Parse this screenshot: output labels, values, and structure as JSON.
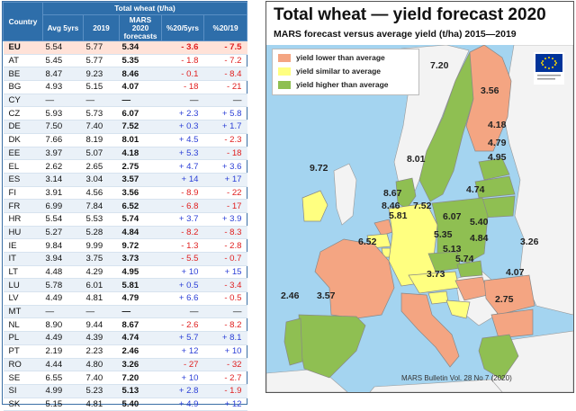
{
  "table": {
    "title": "Total wheat (t/ha)",
    "headers": {
      "country": "Country",
      "avg": "Avg 5yrs",
      "y2019": "2019",
      "forecast": "MARS 2020 forecasts",
      "d5": "%20/5yrs",
      "d19": "%20/19"
    },
    "rows": [
      {
        "country": "EU",
        "avg": "5.54",
        "y2019": "5.77",
        "forecast": "5.34",
        "d5": "- 3.6",
        "d19": "- 7.5"
      },
      {
        "country": "AT",
        "avg": "5.45",
        "y2019": "5.77",
        "forecast": "5.35",
        "d5": "- 1.8",
        "d19": "- 7.2"
      },
      {
        "country": "BE",
        "avg": "8.47",
        "y2019": "9.23",
        "forecast": "8.46",
        "d5": "- 0.1",
        "d19": "- 8.4"
      },
      {
        "country": "BG",
        "avg": "4.93",
        "y2019": "5.15",
        "forecast": "4.07",
        "d5": "- 18",
        "d19": "- 21"
      },
      {
        "country": "CY",
        "avg": "—",
        "y2019": "—",
        "forecast": "—",
        "d5": "—",
        "d19": "—"
      },
      {
        "country": "CZ",
        "avg": "5.93",
        "y2019": "5.73",
        "forecast": "6.07",
        "d5": "+ 2.3",
        "d19": "+ 5.8"
      },
      {
        "country": "DE",
        "avg": "7.50",
        "y2019": "7.40",
        "forecast": "7.52",
        "d5": "+ 0.3",
        "d19": "+ 1.7"
      },
      {
        "country": "DK",
        "avg": "7.66",
        "y2019": "8.19",
        "forecast": "8.01",
        "d5": "+ 4.5",
        "d19": "- 2.3"
      },
      {
        "country": "EE",
        "avg": "3.97",
        "y2019": "5.07",
        "forecast": "4.18",
        "d5": "+ 5.3",
        "d19": "- 18"
      },
      {
        "country": "EL",
        "avg": "2.62",
        "y2019": "2.65",
        "forecast": "2.75",
        "d5": "+ 4.7",
        "d19": "+ 3.6"
      },
      {
        "country": "ES",
        "avg": "3.14",
        "y2019": "3.04",
        "forecast": "3.57",
        "d5": "+ 14",
        "d19": "+ 17"
      },
      {
        "country": "FI",
        "avg": "3.91",
        "y2019": "4.56",
        "forecast": "3.56",
        "d5": "- 8.9",
        "d19": "- 22"
      },
      {
        "country": "FR",
        "avg": "6.99",
        "y2019": "7.84",
        "forecast": "6.52",
        "d5": "- 6.8",
        "d19": "- 17"
      },
      {
        "country": "HR",
        "avg": "5.54",
        "y2019": "5.53",
        "forecast": "5.74",
        "d5": "+ 3.7",
        "d19": "+ 3.9"
      },
      {
        "country": "HU",
        "avg": "5.27",
        "y2019": "5.28",
        "forecast": "4.84",
        "d5": "- 8.2",
        "d19": "- 8.3"
      },
      {
        "country": "IE",
        "avg": "9.84",
        "y2019": "9.99",
        "forecast": "9.72",
        "d5": "- 1.3",
        "d19": "- 2.8"
      },
      {
        "country": "IT",
        "avg": "3.94",
        "y2019": "3.75",
        "forecast": "3.73",
        "d5": "- 5.5",
        "d19": "- 0.7"
      },
      {
        "country": "LT",
        "avg": "4.48",
        "y2019": "4.29",
        "forecast": "4.95",
        "d5": "+ 10",
        "d19": "+ 15"
      },
      {
        "country": "LU",
        "avg": "5.78",
        "y2019": "6.01",
        "forecast": "5.81",
        "d5": "+ 0.5",
        "d19": "- 3.4"
      },
      {
        "country": "LV",
        "avg": "4.49",
        "y2019": "4.81",
        "forecast": "4.79",
        "d5": "+ 6.6",
        "d19": "- 0.5"
      },
      {
        "country": "MT",
        "avg": "—",
        "y2019": "—",
        "forecast": "—",
        "d5": "—",
        "d19": "—"
      },
      {
        "country": "NL",
        "avg": "8.90",
        "y2019": "9.44",
        "forecast": "8.67",
        "d5": "- 2.6",
        "d19": "- 8.2"
      },
      {
        "country": "PL",
        "avg": "4.49",
        "y2019": "4.39",
        "forecast": "4.74",
        "d5": "+ 5.7",
        "d19": "+ 8.1"
      },
      {
        "country": "PT",
        "avg": "2.19",
        "y2019": "2.23",
        "forecast": "2.46",
        "d5": "+ 12",
        "d19": "+ 10"
      },
      {
        "country": "RO",
        "avg": "4.44",
        "y2019": "4.80",
        "forecast": "3.26",
        "d5": "- 27",
        "d19": "- 32"
      },
      {
        "country": "SE",
        "avg": "6.55",
        "y2019": "7.40",
        "forecast": "7.20",
        "d5": "+ 10",
        "d19": "- 2.7"
      },
      {
        "country": "SI",
        "avg": "4.99",
        "y2019": "5.23",
        "forecast": "5.13",
        "d5": "+ 2.8",
        "d19": "- 1.9"
      },
      {
        "country": "SK",
        "avg": "5.15",
        "y2019": "4.81",
        "forecast": "5.40",
        "d5": "+ 4.9",
        "d19": "+ 12"
      }
    ]
  },
  "map": {
    "title": "Total wheat — yield forecast 2020",
    "subtitle": "MARS forecast versus average yield (t/ha) 2015—2019",
    "legend": [
      {
        "label": "yield lower than average",
        "color": "#f4a582"
      },
      {
        "label": "yield similar to average",
        "color": "#ffff80"
      },
      {
        "label": "yield higher than average",
        "color": "#8fbf52"
      }
    ],
    "source": "MARS Bulletin Vol. 28 No 7 (2020)",
    "colors": {
      "sea": "#a4d4f0",
      "nonEU": "#f3f3f3",
      "border": "#888888",
      "flag": "#003399",
      "star": "#ffdd00"
    }
  },
  "chart_data": [
    {
      "type": "table",
      "title": "Total wheat (t/ha)",
      "columns": [
        "Country",
        "Avg 5yrs",
        "2019",
        "MARS 2020 forecasts",
        "%20/5yrs",
        "%20/19"
      ],
      "rows": [
        [
          "EU",
          5.54,
          5.77,
          5.34,
          -3.6,
          -7.5
        ],
        [
          "AT",
          5.45,
          5.77,
          5.35,
          -1.8,
          -7.2
        ],
        [
          "BE",
          8.47,
          9.23,
          8.46,
          -0.1,
          -8.4
        ],
        [
          "BG",
          4.93,
          5.15,
          4.07,
          -18,
          -21
        ],
        [
          "CY",
          null,
          null,
          null,
          null,
          null
        ],
        [
          "CZ",
          5.93,
          5.73,
          6.07,
          2.3,
          5.8
        ],
        [
          "DE",
          7.5,
          7.4,
          7.52,
          0.3,
          1.7
        ],
        [
          "DK",
          7.66,
          8.19,
          8.01,
          4.5,
          -2.3
        ],
        [
          "EE",
          3.97,
          5.07,
          4.18,
          5.3,
          -18
        ],
        [
          "EL",
          2.62,
          2.65,
          2.75,
          4.7,
          3.6
        ],
        [
          "ES",
          3.14,
          3.04,
          3.57,
          14,
          17
        ],
        [
          "FI",
          3.91,
          4.56,
          3.56,
          -8.9,
          -22
        ],
        [
          "FR",
          6.99,
          7.84,
          6.52,
          -6.8,
          -17
        ],
        [
          "HR",
          5.54,
          5.53,
          5.74,
          3.7,
          3.9
        ],
        [
          "HU",
          5.27,
          5.28,
          4.84,
          -8.2,
          -8.3
        ],
        [
          "IE",
          9.84,
          9.99,
          9.72,
          -1.3,
          -2.8
        ],
        [
          "IT",
          3.94,
          3.75,
          3.73,
          -5.5,
          -0.7
        ],
        [
          "LT",
          4.48,
          4.29,
          4.95,
          10,
          15
        ],
        [
          "LU",
          5.78,
          6.01,
          5.81,
          0.5,
          -3.4
        ],
        [
          "LV",
          4.49,
          4.81,
          4.79,
          6.6,
          -0.5
        ],
        [
          "MT",
          null,
          null,
          null,
          null,
          null
        ],
        [
          "NL",
          8.9,
          9.44,
          8.67,
          -2.6,
          -8.2
        ],
        [
          "PL",
          4.49,
          4.39,
          4.74,
          5.7,
          8.1
        ],
        [
          "PT",
          2.19,
          2.23,
          2.46,
          12,
          10
        ],
        [
          "RO",
          4.44,
          4.8,
          3.26,
          -27,
          -32
        ],
        [
          "SE",
          6.55,
          7.4,
          7.2,
          10,
          -2.7
        ],
        [
          "SI",
          4.99,
          5.23,
          5.13,
          2.8,
          -1.9
        ],
        [
          "SK",
          5.15,
          4.81,
          5.4,
          4.9,
          12
        ]
      ]
    },
    {
      "type": "map",
      "title": "Total wheat — yield forecast 2020",
      "subtitle": "MARS forecast versus average yield (t/ha) 2015—2019",
      "legend": [
        "yield lower than average",
        "yield similar to average",
        "yield higher than average"
      ],
      "regions": [
        {
          "value": "7.20",
          "category": "higher"
        },
        {
          "value": "3.56",
          "category": "lower"
        },
        {
          "value": "4.18",
          "category": "higher"
        },
        {
          "value": "4.79",
          "category": "higher"
        },
        {
          "value": "4.95",
          "category": "higher"
        },
        {
          "value": "8.01",
          "category": "higher"
        },
        {
          "value": "9.72",
          "category": "similar"
        },
        {
          "value": "8.67",
          "category": "lower"
        },
        {
          "value": "8.46",
          "category": "similar"
        },
        {
          "value": "5.81",
          "category": "similar"
        },
        {
          "value": "7.52",
          "category": "similar"
        },
        {
          "value": "4.74",
          "category": "higher"
        },
        {
          "value": "6.07",
          "category": "higher"
        },
        {
          "value": "5.40",
          "category": "higher"
        },
        {
          "value": "5.35",
          "category": "similar"
        },
        {
          "value": "4.84",
          "category": "lower"
        },
        {
          "value": "6.52",
          "category": "lower"
        },
        {
          "value": "5.13",
          "category": "similar"
        },
        {
          "value": "5.74",
          "category": "similar"
        },
        {
          "value": "3.26",
          "category": "lower"
        },
        {
          "value": "4.07",
          "category": "lower"
        },
        {
          "value": "3.73",
          "category": "lower"
        },
        {
          "value": "2.46",
          "category": "higher"
        },
        {
          "value": "3.57",
          "category": "higher"
        },
        {
          "value": "2.75",
          "category": "higher"
        }
      ]
    }
  ]
}
